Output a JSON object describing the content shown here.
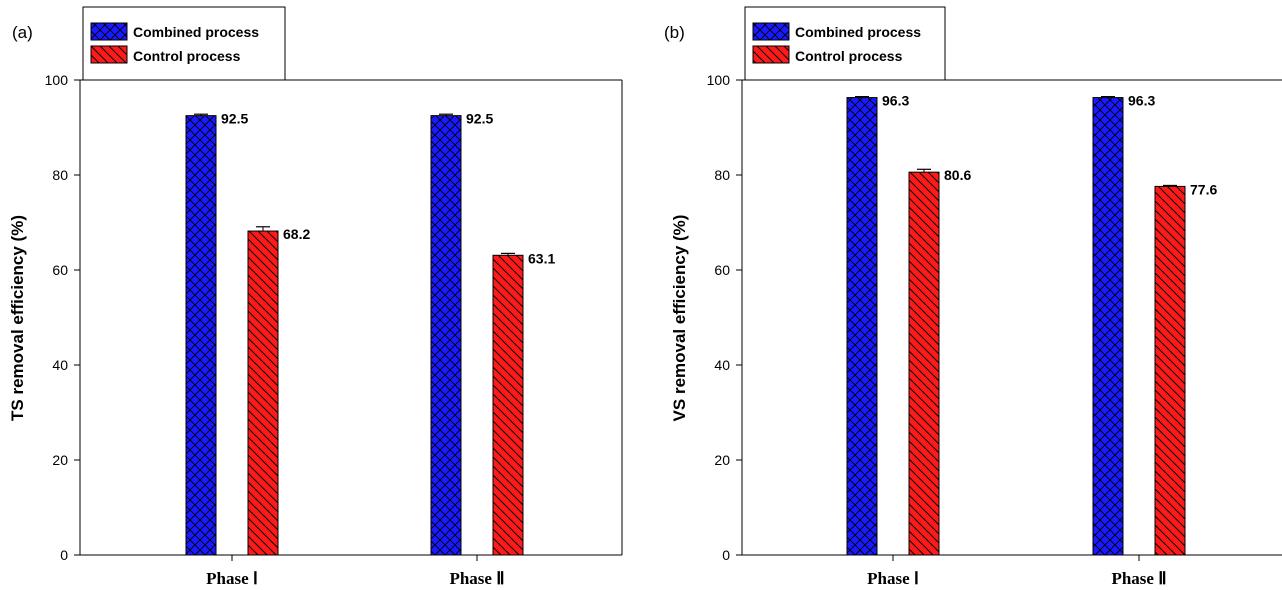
{
  "colors": {
    "combined": "#1a1aff",
    "control": "#ff1a1a",
    "axis": "#000000"
  },
  "chart_data": [
    {
      "type": "bar",
      "panel_label": "(a)",
      "ylabel": "TS removal efficiency (%)",
      "xlabel": "",
      "categories": [
        "Phase Ⅰ",
        "Phase Ⅱ"
      ],
      "ylim": [
        0,
        100
      ],
      "yticks": [
        0,
        20,
        40,
        60,
        80,
        100
      ],
      "legend_position": "top-left",
      "grid": false,
      "series": [
        {
          "name": "Combined process",
          "values": [
            92.5,
            92.5
          ],
          "errors": [
            0.3,
            0.3
          ],
          "color": "#1a1aff",
          "pattern": "crosshatch"
        },
        {
          "name": "Control process",
          "values": [
            68.2,
            63.1
          ],
          "errors": [
            0.9,
            0.4
          ],
          "color": "#ff1a1a",
          "pattern": "diagonal"
        }
      ]
    },
    {
      "type": "bar",
      "panel_label": "(b)",
      "ylabel": "VS removal efficiency (%)",
      "xlabel": "",
      "categories": [
        "Phase Ⅰ",
        "Phase Ⅱ"
      ],
      "ylim": [
        0,
        100
      ],
      "yticks": [
        0,
        20,
        40,
        60,
        80,
        100
      ],
      "legend_position": "top-left",
      "grid": false,
      "series": [
        {
          "name": "Combined process",
          "values": [
            96.3,
            96.3
          ],
          "errors": [
            0.2,
            0.2
          ],
          "color": "#1a1aff",
          "pattern": "crosshatch"
        },
        {
          "name": "Control process",
          "values": [
            80.6,
            77.6
          ],
          "errors": [
            0.6,
            0.2
          ],
          "color": "#ff1a1a",
          "pattern": "diagonal"
        }
      ]
    }
  ]
}
